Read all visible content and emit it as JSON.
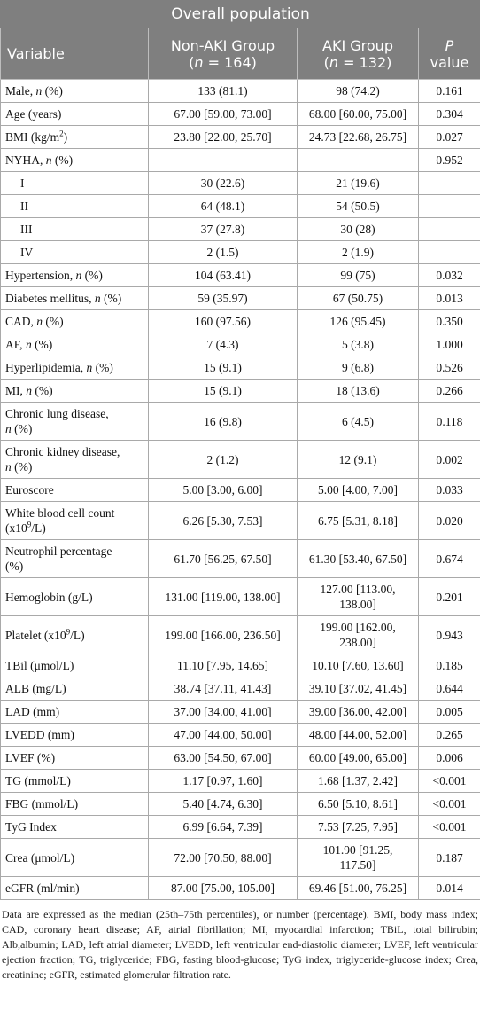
{
  "caption": "Overall population",
  "headers": {
    "variable": "Variable",
    "non_aki_1": "Non-AKI Group",
    "non_aki_2_open": "(",
    "non_aki_2_n": "n",
    "non_aki_2_rest": " = 164)",
    "aki_1": "AKI Group",
    "aki_2_open": "(",
    "aki_2_n": "n",
    "aki_2_rest": " = 132)",
    "p_1": "P",
    "p_2": "value"
  },
  "rows": [
    {
      "label": "Male, ",
      "label_em": "n",
      "label_tail": " (%)",
      "non_aki": "133 (81.1)",
      "aki": "98 (74.2)",
      "p": "0.161"
    },
    {
      "label": "Age (years)",
      "non_aki": "67.00 [59.00, 73.00]",
      "aki": "68.00 [60.00, 75.00]",
      "p": "0.304"
    },
    {
      "label": "BMI (kg/m",
      "label_sup": "2",
      "label_tail": ")",
      "non_aki": "23.80 [22.00, 25.70]",
      "aki": "24.73 [22.68, 26.75]",
      "p": "0.027"
    },
    {
      "label": "NYHA, ",
      "label_em": "n",
      "label_tail": " (%)",
      "non_aki": "",
      "aki": "",
      "p": "0.952"
    },
    {
      "label": "I",
      "non_aki": "30 (22.6)",
      "aki": "21 (19.6)",
      "p": ""
    },
    {
      "label": "II",
      "non_aki": "64 (48.1)",
      "aki": "54 (50.5)",
      "p": ""
    },
    {
      "label": "III",
      "non_aki": "37 (27.8)",
      "aki": "30 (28)",
      "p": ""
    },
    {
      "label": "IV",
      "non_aki": "2 (1.5)",
      "aki": "2 (1.9)",
      "p": ""
    },
    {
      "label": "Hypertension, ",
      "label_em": "n",
      "label_tail": " (%)",
      "non_aki": "104 (63.41)",
      "aki": "99 (75)",
      "p": "0.032"
    },
    {
      "label": "Diabetes mellitus, ",
      "label_em": "n",
      "label_tail": " (%)",
      "non_aki": "59 (35.97)",
      "aki": "67 (50.75)",
      "p": "0.013"
    },
    {
      "label": "CAD, ",
      "label_em": "n",
      "label_tail": " (%)",
      "non_aki": "160 (97.56)",
      "aki": "126 (95.45)",
      "p": "0.350"
    },
    {
      "label": "AF, ",
      "label_em": "n",
      "label_tail": " (%)",
      "non_aki": "7 (4.3)",
      "aki": "5 (3.8)",
      "p": "1.000"
    },
    {
      "label": "Hyperlipidemia, ",
      "label_em": "n",
      "label_tail": " (%)",
      "non_aki": "15 (9.1)",
      "aki": "9 (6.8)",
      "p": "0.526"
    },
    {
      "label": "MI, ",
      "label_em": "n",
      "label_tail": " (%)",
      "non_aki": "15 (9.1)",
      "aki": "18 (13.6)",
      "p": "0.266"
    },
    {
      "label": "Chronic lung disease,",
      "label_line2_em": "n",
      "label_line2_tail": " (%)",
      "non_aki": "16 (9.8)",
      "aki": "6 (4.5)",
      "p": "0.118"
    },
    {
      "label": "Chronic kidney disease,",
      "label_line2_em": "n",
      "label_line2_tail": " (%)",
      "non_aki": "2 (1.2)",
      "aki": "12 (9.1)",
      "p": "0.002"
    },
    {
      "label": "Euroscore",
      "non_aki": "5.00 [3.00, 6.00]",
      "aki": "5.00 [4.00, 7.00]",
      "p": "0.033"
    },
    {
      "label": "White blood cell count",
      "label_line2_pre": "(x10",
      "label_line2_sup": "9",
      "label_line2_tail": "/L)",
      "non_aki": "6.26 [5.30, 7.53]",
      "aki": "6.75 [5.31, 8.18]",
      "p": "0.020"
    },
    {
      "label": "Neutrophil percentage",
      "label_line2_tail": "(%)",
      "non_aki": "61.70 [56.25, 67.50]",
      "aki": "61.30 [53.40, 67.50]",
      "p": "0.674"
    },
    {
      "label": "Hemoglobin (g/L)",
      "non_aki": "131.00 [119.00, 138.00]",
      "aki": "127.00 [113.00,",
      "aki_line2": "138.00]",
      "p": "0.201"
    },
    {
      "label": "Platelet (x10",
      "label_sup": "9",
      "label_tail": "/L)",
      "non_aki": "199.00 [166.00, 236.50]",
      "aki": "199.00 [162.00,",
      "aki_line2": "238.00]",
      "p": "0.943"
    },
    {
      "label": "TBil (μmol/L)",
      "non_aki": "11.10 [7.95, 14.65]",
      "aki": "10.10 [7.60, 13.60]",
      "p": "0.185"
    },
    {
      "label": "ALB (mg/L)",
      "non_aki": "38.74 [37.11, 41.43]",
      "aki": "39.10 [37.02, 41.45]",
      "p": "0.644"
    },
    {
      "label": "LAD (mm)",
      "non_aki": "37.00 [34.00, 41.00]",
      "aki": "39.00 [36.00, 42.00]",
      "p": "0.005"
    },
    {
      "label": "LVEDD (mm)",
      "non_aki": "47.00 [44.00, 50.00]",
      "aki": "48.00 [44.00, 52.00]",
      "p": "0.265"
    },
    {
      "label": "LVEF (%)",
      "non_aki": "63.00 [54.50, 67.00]",
      "aki": "60.00 [49.00, 65.00]",
      "p": "0.006"
    },
    {
      "label": "TG (mmol/L)",
      "non_aki": "1.17 [0.97, 1.60]",
      "aki": "1.68 [1.37, 2.42]",
      "p": "<0.001"
    },
    {
      "label": "FBG (mmol/L)",
      "non_aki": "5.40 [4.74, 6.30]",
      "aki": "6.50 [5.10, 8.61]",
      "p": "<0.001"
    },
    {
      "label": "TyG Index",
      "non_aki": "6.99 [6.64, 7.39]",
      "aki": "7.53 [7.25, 7.95]",
      "p": "<0.001"
    },
    {
      "label": "Crea (μmol/L)",
      "non_aki": "72.00 [70.50, 88.00]",
      "aki": "101.90 [91.25,",
      "aki_line2": "117.50]",
      "p": "0.187"
    },
    {
      "label": "eGFR (ml/min)",
      "non_aki": "87.00 [75.00, 105.00]",
      "aki": "69.46 [51.00, 76.25]",
      "p": "0.014"
    }
  ],
  "footnote": "Data are expressed as the median (25th–75th percentiles), or number (percentage). BMI, body mass index; CAD, coronary heart disease; AF, atrial fibrillation; MI, myocardial infarction; TBiL, total bilirubin; Alb,albumin; LAD, left atrial diameter; LVEDD, left ventricular end-diastolic diameter; LVEF, left ventricular ejection fraction; TG, triglyceride; FBG, fasting blood-glucose; TyG index, triglyceride-glucose index; Crea, creatinine; eGFR, estimated glomerular filtration rate."
}
